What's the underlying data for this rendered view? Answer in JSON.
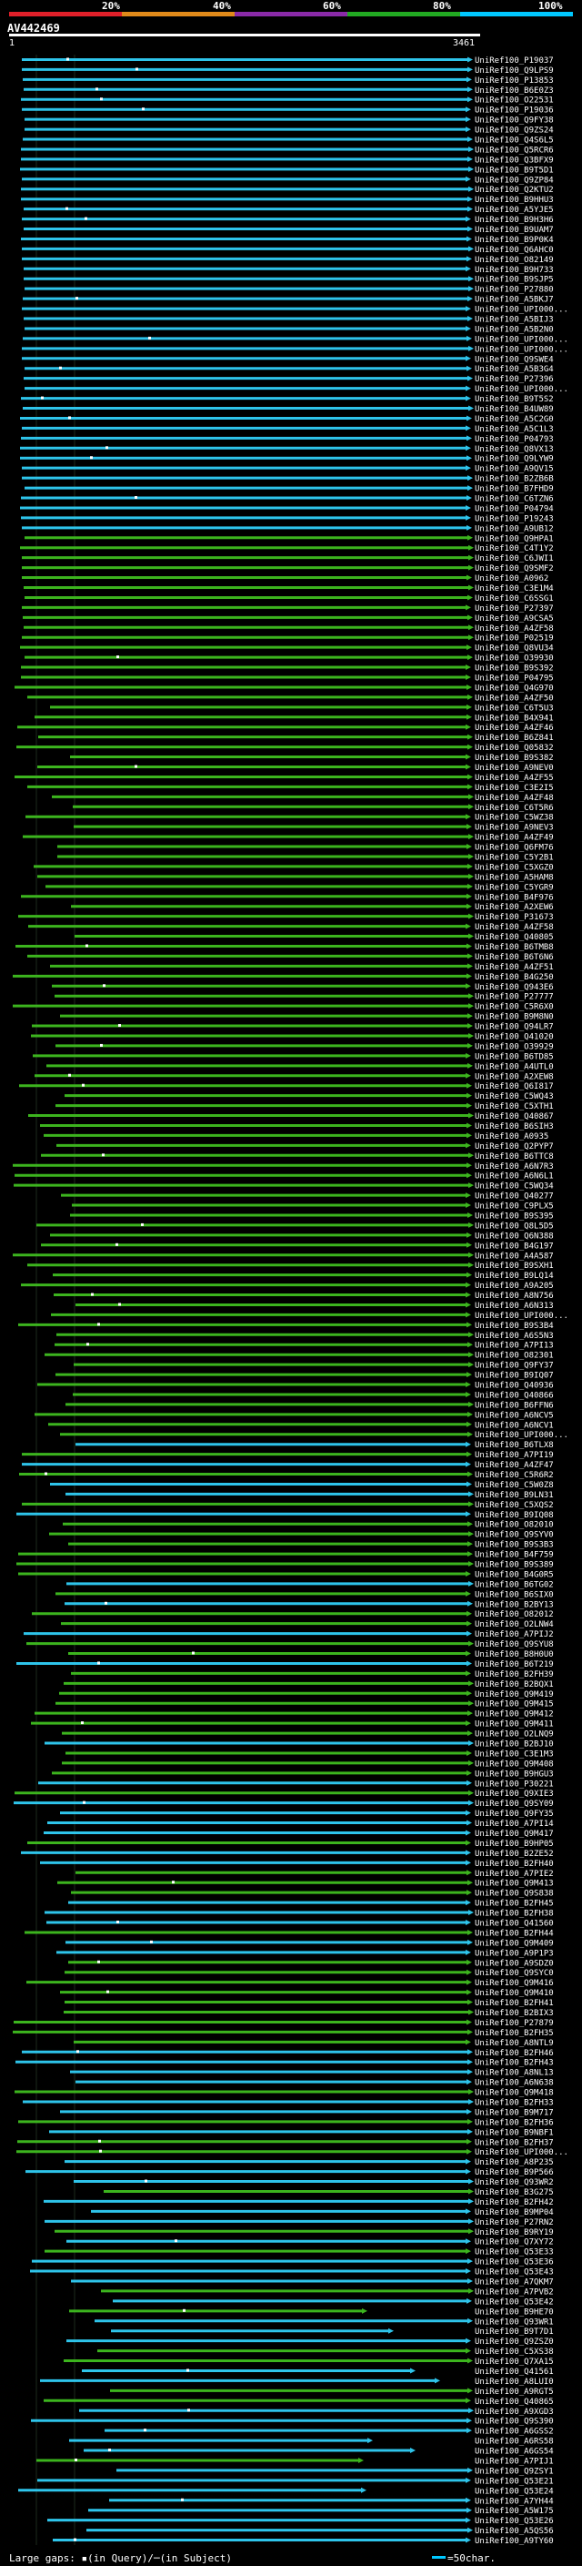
{
  "scale": {
    "labels": [
      "20%",
      "40%",
      "60%",
      "80%",
      "100%"
    ],
    "colors": [
      "#e0202a",
      "#e08a1a",
      "#8a2aa8",
      "#22aa22",
      "#00c8ff"
    ]
  },
  "query": {
    "title": "AV442469",
    "start": "1",
    "end": "3461"
  },
  "footer": {
    "text": "Large gaps: ▪(in Query)/─(in Subject)",
    "legend": "=50char."
  },
  "colors": {
    "cyan": "#2ec4ea",
    "green": "#3cb41e",
    "bg": "#000000"
  },
  "hits": [
    "UniRef100_P19037",
    "UniRef100_Q9LPS9",
    "UniRef100_P13853",
    "UniRef100_B6E0Z3",
    "UniRef100_O22531",
    "UniRef100_P19036",
    "UniRef100_Q9FY38",
    "UniRef100_Q9ZS24",
    "UniRef100_Q4S6L5",
    "UniRef100_Q5RCR6",
    "UniRef100_Q3BFX9",
    "UniRef100_B9T5D1",
    "UniRef100_Q9ZP84",
    "UniRef100_Q2KTU2",
    "UniRef100_B9HHU3",
    "UniRef100_A5YJE5",
    "UniRef100_B9H3H6",
    "UniRef100_B9UAM7",
    "UniRef100_B9P0K4",
    "UniRef100_Q6AHC0",
    "UniRef100_O82149",
    "UniRef100_B9H733",
    "UniRef100_B9SJP5",
    "UniRef100_P27880",
    "UniRef100_A5BKJ7",
    "UniRef100_UPI000...",
    "UniRef100_A5BIJ3",
    "UniRef100_A5B2N0",
    "UniRef100_UPI000...",
    "UniRef100_UPI000...",
    "UniRef100_Q9SWE4",
    "UniRef100_A5B3G4",
    "UniRef100_P27396",
    "UniRef100_UPI000...",
    "UniRef100_B9T5S2",
    "UniRef100_B4UW89",
    "UniRef100_A5C2G0",
    "UniRef100_A5C1L3",
    "UniRef100_P04793",
    "UniRef100_Q8VX13",
    "UniRef100_Q9LYW9",
    "UniRef100_A9QV15",
    "UniRef100_B2ZB6B",
    "UniRef100_B7FHD9",
    "UniRef100_C6TZN6",
    "UniRef100_P04794",
    "UniRef100_P19243",
    "UniRef100_A9UB12",
    "UniRef100_Q9HPA1",
    "UniRef100_C4T1Y2",
    "UniRef100_C6JWI1",
    "UniRef100_Q9SMF2",
    "UniRef100_A0962",
    "UniRef100_C3E1M4",
    "UniRef100_C6SSG1",
    "UniRef100_P27397",
    "UniRef100_A9CSA5",
    "UniRef100_A4ZF58",
    "UniRef100_P02519",
    "UniRef100_Q8VU34",
    "UniRef100_O39930",
    "UniRef100_B9S392",
    "UniRef100_P04795",
    "UniRef100_Q4G970",
    "UniRef100_A4ZF50",
    "UniRef100_C6T5U3",
    "UniRef100_B4X941",
    "UniRef100_A4ZF46",
    "UniRef100_B6Z841",
    "UniRef100_Q05832",
    "UniRef100_B9S382",
    "UniRef100_A9NEV0",
    "UniRef100_A4ZF55",
    "UniRef100_C3E2I5",
    "UniRef100_A4ZF48",
    "UniRef100_C6T5R6",
    "UniRef100_C5WZ38",
    "UniRef100_A9NEV3",
    "UniRef100_A4ZF49",
    "UniRef100_Q6FM76",
    "UniRef100_C5Y2B1",
    "UniRef100_C5XGZ0",
    "UniRef100_A5HAM8",
    "UniRef100_C5YGR9",
    "UniRef100_B4F976",
    "UniRef100_A2XEW6",
    "UniRef100_P31673",
    "UniRef100_A4ZF58",
    "UniRef100_Q40805",
    "UniRef100_B6TMB8",
    "UniRef100_B6T6N6",
    "UniRef100_A4ZF51",
    "UniRef100_B4G250",
    "UniRef100_Q943E6",
    "UniRef100_P27777",
    "UniRef100_C5R6X0",
    "UniRef100_B9M8N0",
    "UniRef100_Q94LR7",
    "UniRef100_Q41020",
    "UniRef100_O39929",
    "UniRef100_B6TD85",
    "UniRef100_A4UTL0",
    "UniRef100_A2XEW8",
    "UniRef100_Q6I817",
    "UniRef100_C5WQ43",
    "UniRef100_C5XTH1",
    "UniRef100_Q40867",
    "UniRef100_B6SIH3",
    "UniRef100_A0935",
    "UniRef100_Q2PYP7",
    "UniRef100_B6TTC8",
    "UniRef100_A6N7R3",
    "UniRef100_A6N6L1",
    "UniRef100_C5WQ34",
    "UniRef100_Q40277",
    "UniRef100_C9PLX5",
    "UniRef100_B9S395",
    "UniRef100_Q8L5D5",
    "UniRef100_Q6N388",
    "UniRef100_B4G197",
    "UniRef100_A4A587",
    "UniRef100_B9SXH1",
    "UniRef100_B9LQ14",
    "UniRef100_A9A205",
    "UniRef100_A8N756",
    "UniRef100_A6N313",
    "UniRef100_UPI000...",
    "UniRef100_B9S3B4",
    "UniRef100_A6S5N3",
    "UniRef100_A7PI13",
    "UniRef100_O82301",
    "UniRef100_Q9FY37",
    "UniRef100_B9IQ07",
    "UniRef100_Q40936",
    "UniRef100_Q40866",
    "UniRef100_B6FFN6",
    "UniRef100_A6NCV5",
    "UniRef100_A6NCV1",
    "UniRef100_UPI000...",
    "UniRef100_B6TLX8",
    "UniRef100_A7PI19",
    "UniRef100_A4ZF47",
    "UniRef100_C5R6R2",
    "UniRef100_C5W0Z8",
    "UniRef100_B9LN31",
    "UniRef100_C5XQS2",
    "UniRef100_B9IQ08",
    "UniRef100_O82010",
    "UniRef100_Q9SYV0",
    "UniRef100_B9S3B3",
    "UniRef100_B4F759",
    "UniRef100_B9S389",
    "UniRef100_B4G0R5",
    "UniRef100_B6TG02",
    "UniRef100_B6SIX0",
    "UniRef100_B2BY13",
    "UniRef100_O82012",
    "UniRef100_O2LNW4",
    "UniRef100_A7PIJ2",
    "UniRef100_Q9SYU8",
    "UniRef100_B8H0U0",
    "UniRef100_B6T219",
    "UniRef100_B2FH39",
    "UniRef100_B2BQX1",
    "UniRef100_Q9M419",
    "UniRef100_Q9M415",
    "UniRef100_Q9M412",
    "UniRef100_Q9M411",
    "UniRef100_O2LNQ9",
    "UniRef100_B2BJ10",
    "UniRef100_C3E1M3",
    "UniRef100_Q9M408",
    "UniRef100_B9HGU3",
    "UniRef100_P30221",
    "UniRef100_Q9XIE3",
    "UniRef100_Q9SY09",
    "UniRef100_Q9FY35",
    "UniRef100_A7PI14",
    "UniRef100_Q9M417",
    "UniRef100_B9HP05",
    "UniRef100_B2ZE52",
    "UniRef100_B2FH40",
    "UniRef100_A7PIE2",
    "UniRef100_Q9M413",
    "UniRef100_Q9S838",
    "UniRef100_B2FH45",
    "UniRef100_B2FH38",
    "UniRef100_Q41560",
    "UniRef100_B2FH44",
    "UniRef100_Q9M409",
    "UniRef100_A9P1P3",
    "UniRef100_A9SDZ0",
    "UniRef100_Q9SYC0",
    "UniRef100_Q9M416",
    "UniRef100_Q9M410",
    "UniRef100_B2FH41",
    "UniRef100_B2BIX3",
    "UniRef100_P27879",
    "UniRef100_B2FH35",
    "UniRef100_A8NTL9",
    "UniRef100_B2FH46",
    "UniRef100_B2FH43",
    "UniRef100_A8NL13",
    "UniRef100_A6N638",
    "UniRef100_Q9M418",
    "UniRef100_B2FH33",
    "UniRef100_B9M717",
    "UniRef100_B2FH36",
    "UniRef100_B9NBF1",
    "UniRef100_B2FH37",
    "UniRef100_UPI000...",
    "UniRef100_A8P235",
    "UniRef100_B9P566",
    "UniRef100_Q93WR2",
    "UniRef100_B3G275",
    "UniRef100_B2FH42",
    "UniRef100_B9MP04",
    "UniRef100_P27RN2",
    "UniRef100_B9RY19",
    "UniRef100_Q7XY72",
    "UniRef100_Q53E33",
    "UniRef100_Q53E36",
    "UniRef100_Q53E43",
    "UniRef100_A7QKM7",
    "UniRef100_A7PVB2",
    "UniRef100_Q53E42",
    "UniRef100_B9HE70",
    "UniRef100_Q93WR1",
    "UniRef100_B9T7D1",
    "UniRef100_Q9ZSZ0",
    "UniRef100_C5XS38",
    "UniRef100_Q7XA15",
    "UniRef100_Q41561",
    "UniRef100_A8LUI0",
    "UniRef100_A9RGT5",
    "UniRef100_Q40865",
    "UniRef100_A9XGD3",
    "UniRef100_Q9S390",
    "UniRef100_A6GSS2",
    "UniRef100_A6RS58",
    "UniRef100_A6GS54",
    "UniRef100_A7PIJ1",
    "UniRef100_Q9ZSY1",
    "UniRef100_Q53E21",
    "UniRef100_Q53E24",
    "UniRef100_A7YH44",
    "UniRef100_A5W175",
    "UniRef100_Q53E26",
    "UniRef100_A5QS56",
    "UniRef100_A9TY60"
  ]
}
